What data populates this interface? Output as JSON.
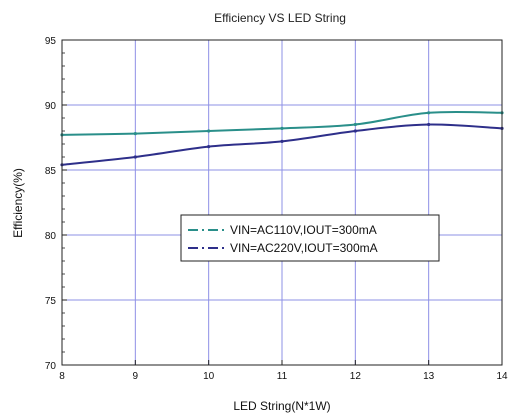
{
  "chart_data": {
    "type": "line",
    "title": "Efficiency VS LED String",
    "xlabel": "LED String(N*1W)",
    "ylabel": "Efficiency(%)",
    "xlim": [
      8,
      14
    ],
    "ylim": [
      70,
      95
    ],
    "xticks": [
      8,
      9,
      10,
      11,
      12,
      13,
      14
    ],
    "yticks": [
      70,
      75,
      80,
      85,
      90,
      95
    ],
    "grid": true,
    "legend_position": "center-right",
    "colors": {
      "grid": "#8e90e6",
      "axis": "#222222"
    },
    "x": [
      8,
      9,
      10,
      11,
      12,
      13,
      14
    ],
    "series": [
      {
        "name": "VIN=AC110V,IOUT=300mA",
        "color": "#2a8f8a",
        "dash": "dash-dot",
        "values": [
          87.7,
          87.8,
          88.0,
          88.2,
          88.5,
          89.4,
          89.4
        ]
      },
      {
        "name": "VIN=AC220V,IOUT=300mA",
        "color": "#2e2f8a",
        "dash": "dash-dot",
        "values": [
          85.4,
          86.0,
          86.8,
          87.2,
          88.0,
          88.5,
          88.2
        ]
      }
    ]
  }
}
